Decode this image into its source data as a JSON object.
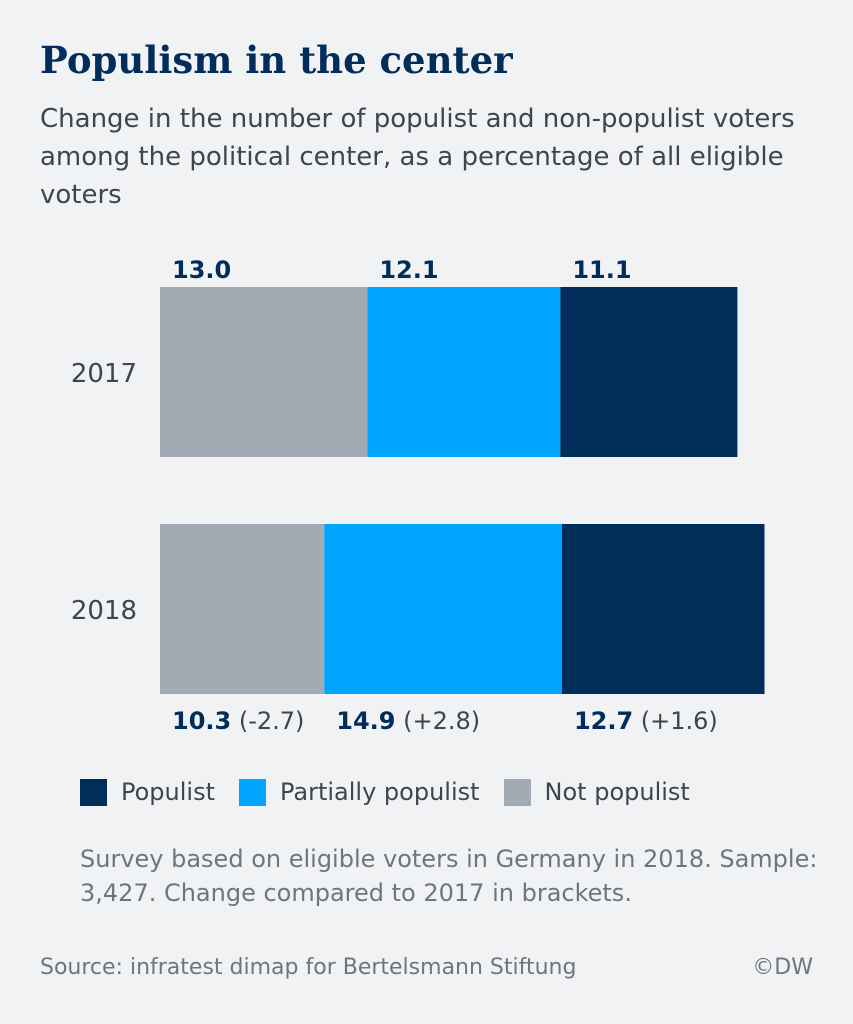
{
  "title": "Populism in the center",
  "subtitle": "Change in the number of populist and non-populist voters among the political center, as a percentage of all eligible voters",
  "chart_data": {
    "type": "bar",
    "orientation": "horizontal",
    "stacked": true,
    "categories": [
      "2017",
      "2018"
    ],
    "series": [
      {
        "name": "Not populist",
        "color": "#a2abb3",
        "values": [
          13.0,
          10.3
        ],
        "labels": [
          "13.0",
          "10.3"
        ],
        "changes": [
          "",
          "(-2.7)"
        ]
      },
      {
        "name": "Partially populist",
        "color": "#00a5ff",
        "values": [
          12.1,
          14.9
        ],
        "labels": [
          "12.1",
          "14.9"
        ],
        "changes": [
          "",
          "(+2.8)"
        ]
      },
      {
        "name": "Populist",
        "color": "#002d5a",
        "values": [
          11.1,
          12.7
        ],
        "labels": [
          "11.1",
          "12.7"
        ],
        "changes": [
          "",
          "(+1.6)"
        ]
      }
    ],
    "label_position": [
      "top",
      "bottom"
    ],
    "grid": false,
    "legend_position": "bottom"
  },
  "legend": [
    {
      "label": "Populist",
      "color": "#002d5a"
    },
    {
      "label": "Partially populist",
      "color": "#00a5ff"
    },
    {
      "label": "Not populist",
      "color": "#a2abb3"
    }
  ],
  "note": "Survey based on eligible voters in Germany in 2018. Sample: 3,427. Change compared to 2017 in brackets.",
  "source": "Source: infratest dimap for Bertelsmann Stiftung",
  "credit": "©DW"
}
